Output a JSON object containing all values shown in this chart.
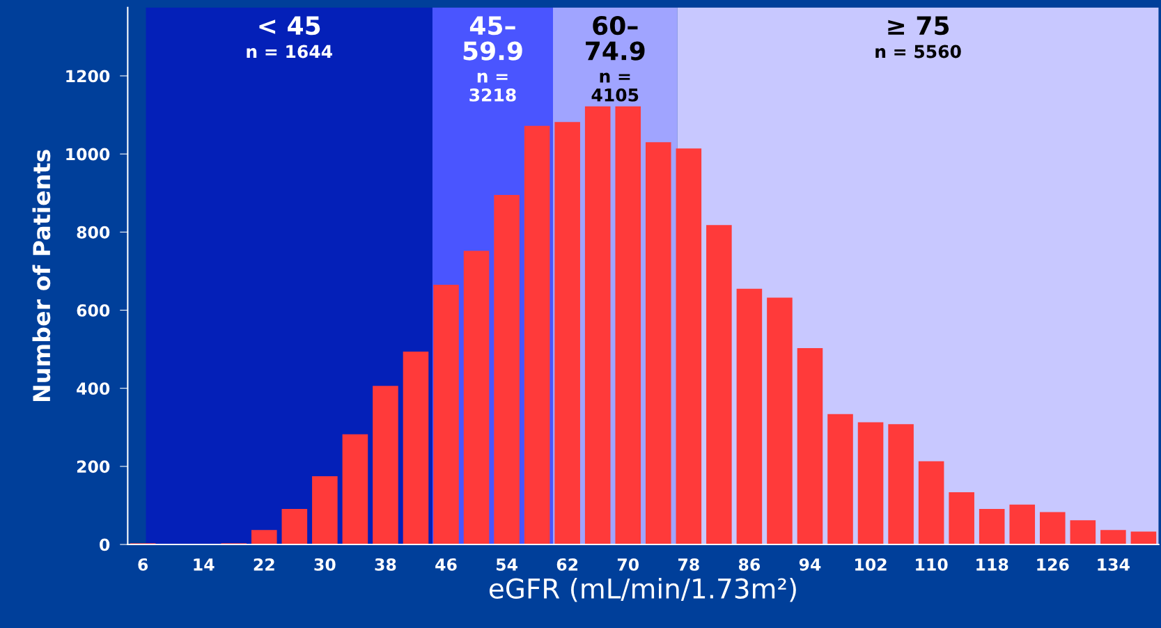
{
  "chart_data": {
    "type": "bar",
    "xlabel": "eGFR (mL/min/1.73m²)",
    "ylabel": "Number of Patients",
    "x": [
      6,
      10,
      14,
      18,
      22,
      26,
      30,
      34,
      38,
      42,
      46,
      50,
      54,
      58,
      62,
      66,
      70,
      74,
      78,
      82,
      86,
      90,
      94,
      98,
      102,
      106,
      110,
      114,
      118,
      122,
      126,
      130,
      134,
      138
    ],
    "series": [
      {
        "color": "#ff3a3a",
        "values": [
          3,
          0,
          0,
          3,
          37,
          91,
          175,
          282,
          406,
          494,
          665,
          752,
          895,
          1072,
          1082,
          1122,
          1122,
          1030,
          1014,
          818,
          655,
          632,
          503,
          334,
          313,
          308,
          213,
          134,
          91,
          102,
          83,
          62,
          37,
          33
        ]
      }
    ],
    "xlim": [
      4,
      140
    ],
    "ylim": [
      0,
      1375
    ],
    "xticks": [
      6,
      14,
      22,
      30,
      38,
      46,
      54,
      62,
      70,
      78,
      86,
      94,
      102,
      110,
      118,
      126,
      134
    ],
    "yticks": [
      0,
      200,
      400,
      600,
      800,
      1000,
      1200
    ],
    "grid": false,
    "legend": false,
    "bands": [
      {
        "axis": "x",
        "from": 6.4,
        "to": 44.2,
        "label": "< 45\nn = 1644",
        "color": "#0420b8"
      },
      {
        "axis": "x",
        "from": 44.2,
        "to": 60.1,
        "label": "45–\n59.9\nn =\n3218",
        "color": "#4a55ff"
      },
      {
        "axis": "x",
        "from": 60.1,
        "to": 76.5,
        "label": "60–\n74.9\nn =\n4105",
        "color": "#a0a4ff"
      },
      {
        "axis": "x",
        "from": 76.5,
        "to": 140,
        "label": "≥ 75\nn = 5560",
        "color": "#c8c8ff"
      }
    ]
  }
}
